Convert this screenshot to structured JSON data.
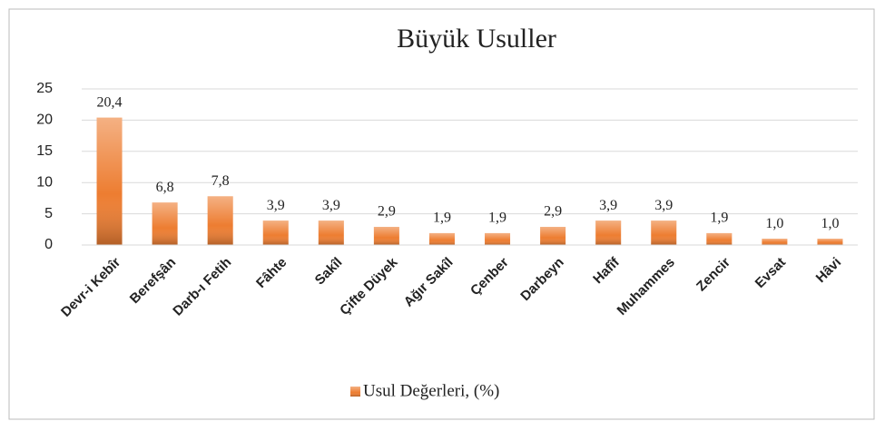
{
  "chart_data": {
    "type": "bar",
    "title": "Büyük Usuller",
    "categories": [
      "Devr-i Kebîr",
      "Berefşân",
      "Darb-ı Fetih",
      "Fâhte",
      "Sakîl",
      "Çifte Düyek",
      "Ağır Sakîl",
      "Çenber",
      "Darbeyn",
      "Hafîf",
      "Muhammes",
      "Zencir",
      "Evsat",
      "Hâvi"
    ],
    "series": [
      {
        "name": "Usul Değerleri, (%)",
        "color": "#ed7d31",
        "values": [
          20.4,
          6.8,
          7.8,
          3.9,
          3.9,
          2.9,
          1.9,
          1.9,
          2.9,
          3.9,
          3.9,
          1.9,
          1.0,
          1.0
        ],
        "value_labels": [
          "20,4",
          "6,8",
          "7,8",
          "3,9",
          "3,9",
          "2,9",
          "1,9",
          "1,9",
          "2,9",
          "3,9",
          "3,9",
          "1,9",
          "1,0",
          "1,0"
        ]
      }
    ],
    "ylim": [
      0,
      25
    ],
    "yticks": [
      0,
      5,
      10,
      15,
      20,
      25
    ],
    "grid": true,
    "legend": "bottom"
  }
}
